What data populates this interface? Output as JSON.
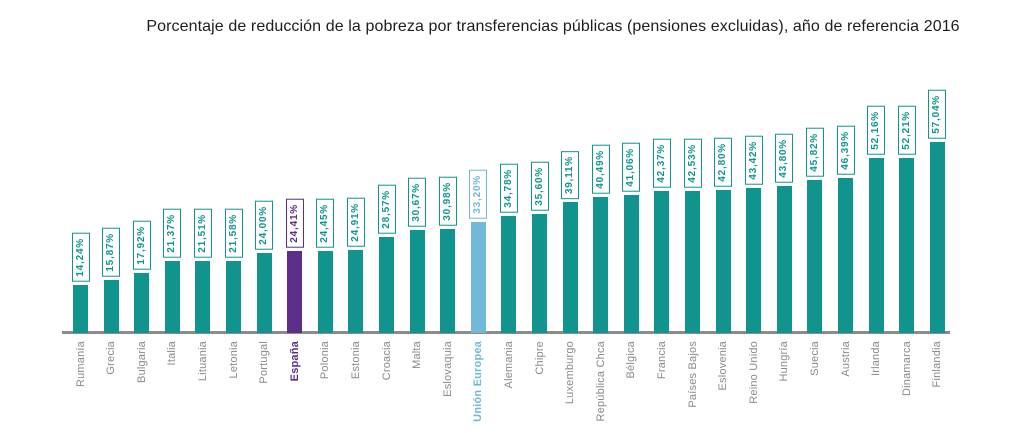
{
  "title": "Porcentaje de reducción de la pobreza por transferencias públicas (pensiones excluidas), año de referencia 2016",
  "chart_data": {
    "type": "bar",
    "title": "Porcentaje de reducción de la pobreza por transferencias públicas (pensiones excluidas), año de referencia 2016",
    "xlabel": "",
    "ylabel": "",
    "ylim": [
      0,
      60
    ],
    "grid": false,
    "legend": "none",
    "value_label_format": "es-ES percent, two decimals, boxed, rotated 90deg",
    "categories": [
      "Rumanía",
      "Grecia",
      "Bulgaria",
      "Italia",
      "Lituania",
      "Letonia",
      "Portugal",
      "España",
      "Polonia",
      "Estonia",
      "Croacia",
      "Malta",
      "Eslovaquia",
      "Unión Europea",
      "Alemania",
      "Chipre",
      "Luxemburgo",
      "República Chca",
      "Bélgica",
      "Francia",
      "Países Bajos",
      "Eslovenia",
      "Reino Unido",
      "Hungría",
      "Suecia",
      "Austria",
      "Irlanda",
      "Dinamarca",
      "Finlandia"
    ],
    "values": [
      14.24,
      15.87,
      17.92,
      21.37,
      21.51,
      21.58,
      24.0,
      24.41,
      24.45,
      24.91,
      28.57,
      30.67,
      30.98,
      33.2,
      34.78,
      35.6,
      39.11,
      40.49,
      41.06,
      42.37,
      42.53,
      42.8,
      43.42,
      43.8,
      45.82,
      46.39,
      52.16,
      52.21,
      57.04
    ],
    "bars": [
      {
        "label": "Rumanía",
        "display": "14,24%",
        "value": 14.24,
        "role": "teal"
      },
      {
        "label": "Grecia",
        "display": "15,87%",
        "value": 15.87,
        "role": "teal"
      },
      {
        "label": "Bulgaria",
        "display": "17,92%",
        "value": 17.92,
        "role": "teal"
      },
      {
        "label": "Italia",
        "display": "21,37%",
        "value": 21.37,
        "role": "teal"
      },
      {
        "label": "Lituania",
        "display": "21,51%",
        "value": 21.51,
        "role": "teal"
      },
      {
        "label": "Letonia",
        "display": "21,58%",
        "value": 21.58,
        "role": "teal"
      },
      {
        "label": "Portugal",
        "display": "24,00%",
        "value": 24.0,
        "role": "teal"
      },
      {
        "label": "España",
        "display": "24,41%",
        "value": 24.41,
        "role": "spain"
      },
      {
        "label": "Polonia",
        "display": "24,45%",
        "value": 24.45,
        "role": "teal"
      },
      {
        "label": "Estonia",
        "display": "24,91%",
        "value": 24.91,
        "role": "teal"
      },
      {
        "label": "Croacia",
        "display": "28,57%",
        "value": 28.57,
        "role": "teal"
      },
      {
        "label": "Malta",
        "display": "30,67%",
        "value": 30.67,
        "role": "teal"
      },
      {
        "label": "Eslovaquia",
        "display": "30,98%",
        "value": 30.98,
        "role": "teal"
      },
      {
        "label": "Unión Europea",
        "display": "33,20%",
        "value": 33.2,
        "role": "eu"
      },
      {
        "label": "Alemania",
        "display": "34,78%",
        "value": 34.78,
        "role": "teal"
      },
      {
        "label": "Chipre",
        "display": "35,60%",
        "value": 35.6,
        "role": "teal"
      },
      {
        "label": "Luxemburgo",
        "display": "39,11%",
        "value": 39.11,
        "role": "teal"
      },
      {
        "label": "República Chca",
        "display": "40,49%",
        "value": 40.49,
        "role": "teal"
      },
      {
        "label": "Bélgica",
        "display": "41,06%",
        "value": 41.06,
        "role": "teal"
      },
      {
        "label": "Francia",
        "display": "42,37%",
        "value": 42.37,
        "role": "teal"
      },
      {
        "label": "Países Bajos",
        "display": "42,53%",
        "value": 42.53,
        "role": "teal"
      },
      {
        "label": "Eslovenia",
        "display": "42,80%",
        "value": 42.8,
        "role": "teal"
      },
      {
        "label": "Reino Unido",
        "display": "43,42%",
        "value": 43.42,
        "role": "teal"
      },
      {
        "label": "Hungría",
        "display": "43,80%",
        "value": 43.8,
        "role": "teal"
      },
      {
        "label": "Suecia",
        "display": "45,82%",
        "value": 45.82,
        "role": "teal"
      },
      {
        "label": "Austria",
        "display": "46,39%",
        "value": 46.39,
        "role": "teal"
      },
      {
        "label": "Irlanda",
        "display": "52,16%",
        "value": 52.16,
        "role": "teal"
      },
      {
        "label": "Dinamarca",
        "display": "52,21%",
        "value": 52.21,
        "role": "teal"
      },
      {
        "label": "Finlandia",
        "display": "57,04%",
        "value": 57.04,
        "role": "teal"
      }
    ],
    "colors": {
      "teal": "#12948e",
      "spain": "#5b2e87",
      "eu": "#72b8d8",
      "axis": "#8c8c8c",
      "category_label": "#8a8a8a",
      "title": "#1d1d1b",
      "value_box_bg": "#ffffff"
    }
  }
}
